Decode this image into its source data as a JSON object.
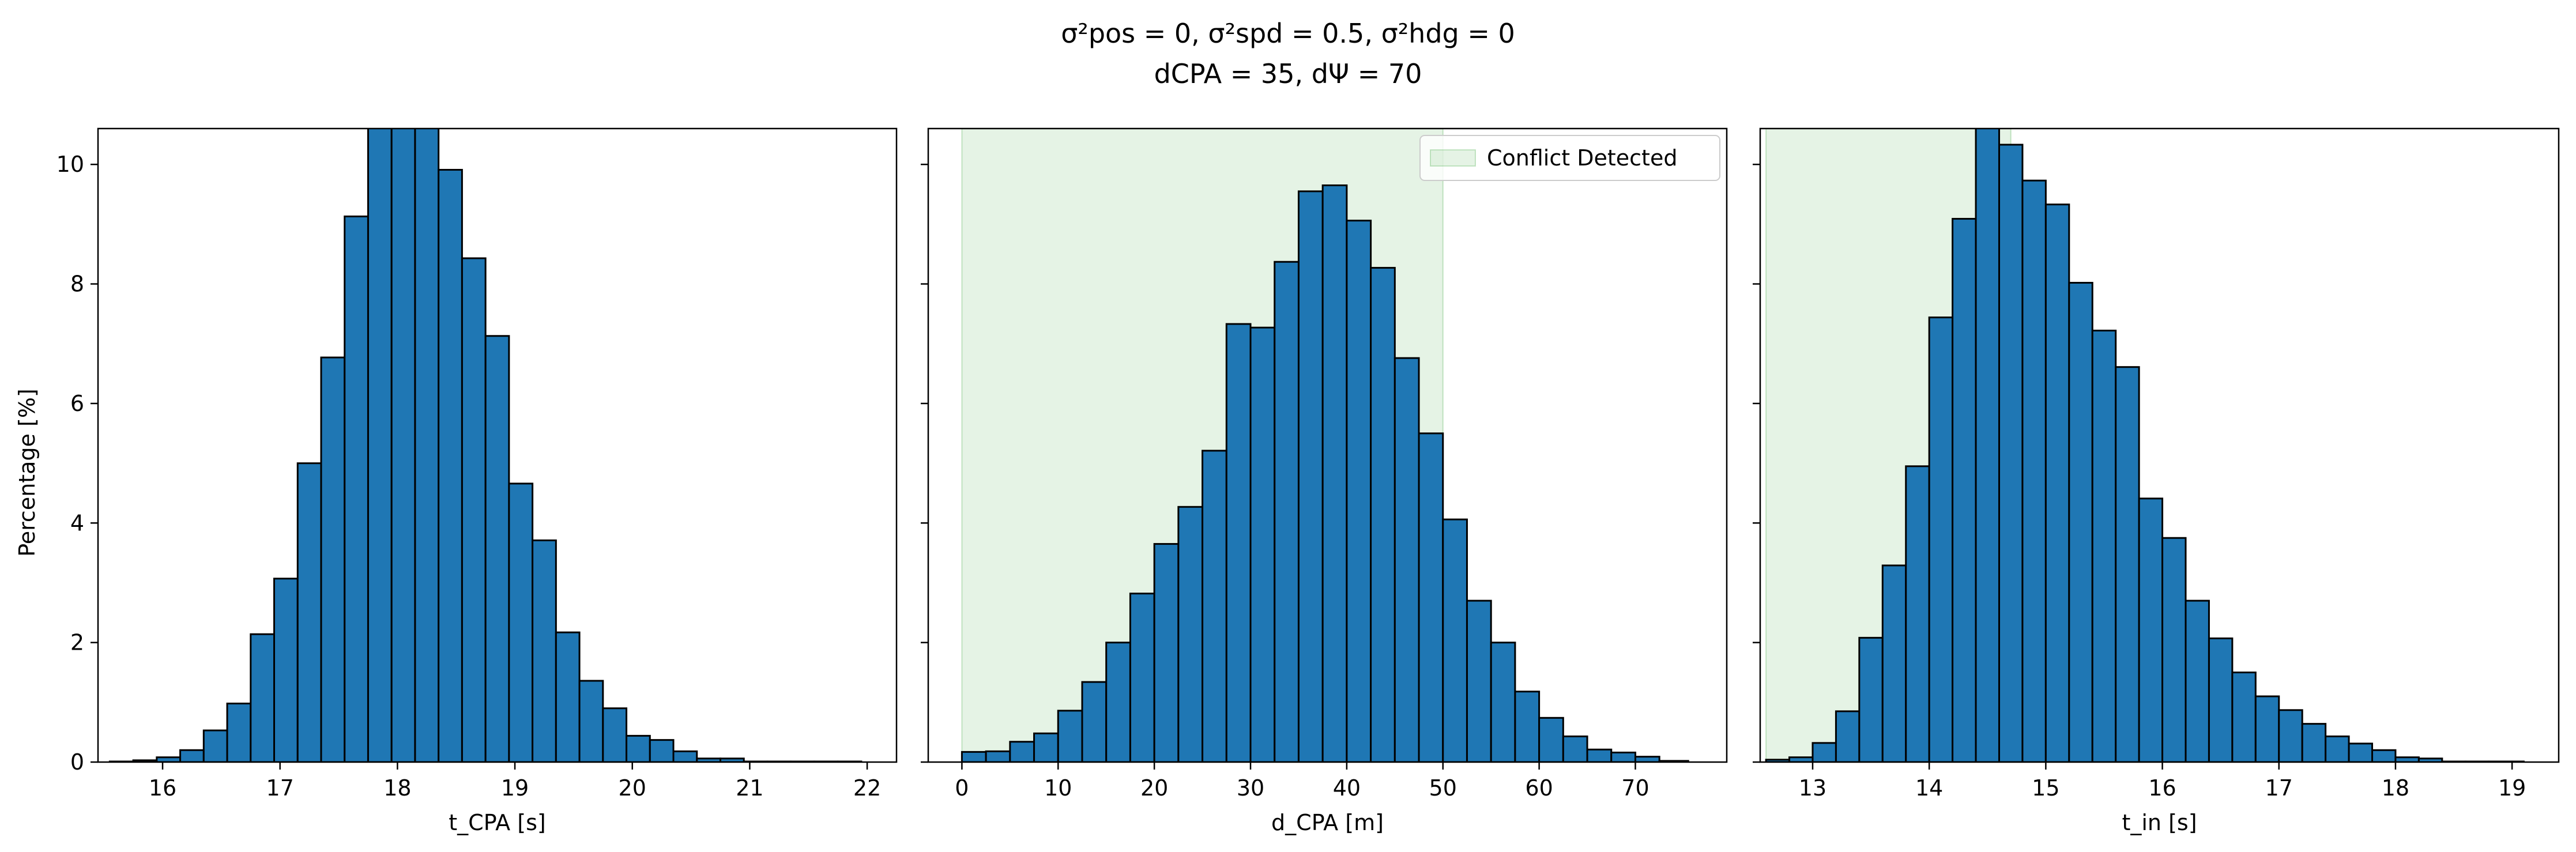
{
  "suptitle": {
    "line1": "σ²pos = 0, σ²spd = 0.5, σ²hdg = 0",
    "line2": "dCPA = 35, dΨ = 70"
  },
  "colors": {
    "bar_fill": "#1f77b4",
    "bar_edge": "#000000",
    "conflict_fill": "#2ca02c",
    "conflict_opacity": 0.12
  },
  "chart_data": [
    {
      "type": "bar",
      "xlabel": "t_CPA [s]",
      "ylabel": "Percentage [%]",
      "xlim": [
        15.45,
        22.25
      ],
      "ylim": [
        0,
        10.6
      ],
      "xticks": [
        16,
        17,
        18,
        19,
        20,
        21,
        22
      ],
      "yticks": [
        0,
        2,
        4,
        6,
        8,
        10
      ],
      "bin_edges": [
        15.55,
        15.75,
        15.95,
        16.15,
        16.35,
        16.55,
        16.75,
        16.95,
        17.15,
        17.35,
        17.55,
        17.75,
        17.95,
        18.15,
        18.35,
        18.55,
        18.75,
        18.95,
        19.15,
        19.35,
        19.55,
        19.75,
        19.95,
        20.15,
        20.35,
        20.55,
        20.75,
        20.95,
        21.15,
        21.35,
        21.55,
        21.75,
        21.95
      ],
      "values": [
        0.01,
        0.03,
        0.08,
        0.2,
        0.53,
        0.98,
        2.14,
        3.07,
        5.0,
        6.77,
        9.13,
        10.8,
        10.9,
        10.8,
        9.91,
        8.43,
        7.13,
        4.66,
        3.71,
        2.17,
        1.36,
        0.9,
        0.44,
        0.37,
        0.18,
        0.06,
        0.06,
        0.01,
        0.01,
        0.01,
        0.01,
        0.01
      ]
    },
    {
      "type": "bar",
      "xlabel": "d_CPA [m]",
      "xlim": [
        -3.5,
        79.5
      ],
      "ylim": [
        0,
        10.6
      ],
      "xticks": [
        0,
        10,
        20,
        30,
        40,
        50,
        60,
        70
      ],
      "yticks": [
        0,
        2,
        4,
        6,
        8,
        10
      ],
      "conflict_region": [
        0,
        50
      ],
      "legend": {
        "label": "Conflict Detected",
        "position": "upper right"
      },
      "bin_edges": [
        0,
        2.5,
        5,
        7.5,
        10,
        12.5,
        15,
        17.5,
        20,
        22.5,
        25,
        27.5,
        30,
        32.5,
        35,
        37.5,
        40,
        42.5,
        45,
        47.5,
        50,
        52.5,
        55,
        57.5,
        60,
        62.5,
        65,
        67.5,
        70,
        72.5,
        75.5
      ],
      "values": [
        0.17,
        0.18,
        0.34,
        0.48,
        0.86,
        1.34,
        2.0,
        2.82,
        3.65,
        4.27,
        5.21,
        7.33,
        7.27,
        8.37,
        9.55,
        9.65,
        9.06,
        8.27,
        6.76,
        5.5,
        4.06,
        2.7,
        2.0,
        1.18,
        0.74,
        0.43,
        0.21,
        0.16,
        0.09,
        0.02
      ]
    },
    {
      "type": "bar",
      "xlabel": "t_in [s]",
      "xlim": [
        12.55,
        19.4
      ],
      "ylim": [
        0,
        10.6
      ],
      "xticks": [
        13,
        14,
        15,
        16,
        17,
        18,
        19
      ],
      "yticks": [
        0,
        2,
        4,
        6,
        8,
        10
      ],
      "conflict_region": [
        12.6,
        14.7
      ],
      "bin_edges": [
        12.6,
        12.8,
        13.0,
        13.2,
        13.4,
        13.6,
        13.8,
        14.0,
        14.2,
        14.4,
        14.6,
        14.8,
        15.0,
        15.2,
        15.4,
        15.6,
        15.8,
        16.0,
        16.2,
        16.4,
        16.6,
        16.8,
        17.0,
        17.2,
        17.4,
        17.6,
        17.8,
        18.0,
        18.2,
        18.4,
        18.6,
        18.8,
        19.0,
        19.1
      ],
      "values": [
        0.04,
        0.08,
        0.32,
        0.85,
        2.08,
        3.29,
        4.95,
        7.44,
        9.09,
        10.8,
        10.33,
        9.73,
        9.33,
        8.02,
        7.22,
        6.61,
        4.41,
        3.75,
        2.7,
        2.07,
        1.5,
        1.1,
        0.87,
        0.64,
        0.43,
        0.31,
        0.2,
        0.08,
        0.06,
        0.01,
        0.01,
        0.01,
        0.01
      ]
    }
  ]
}
